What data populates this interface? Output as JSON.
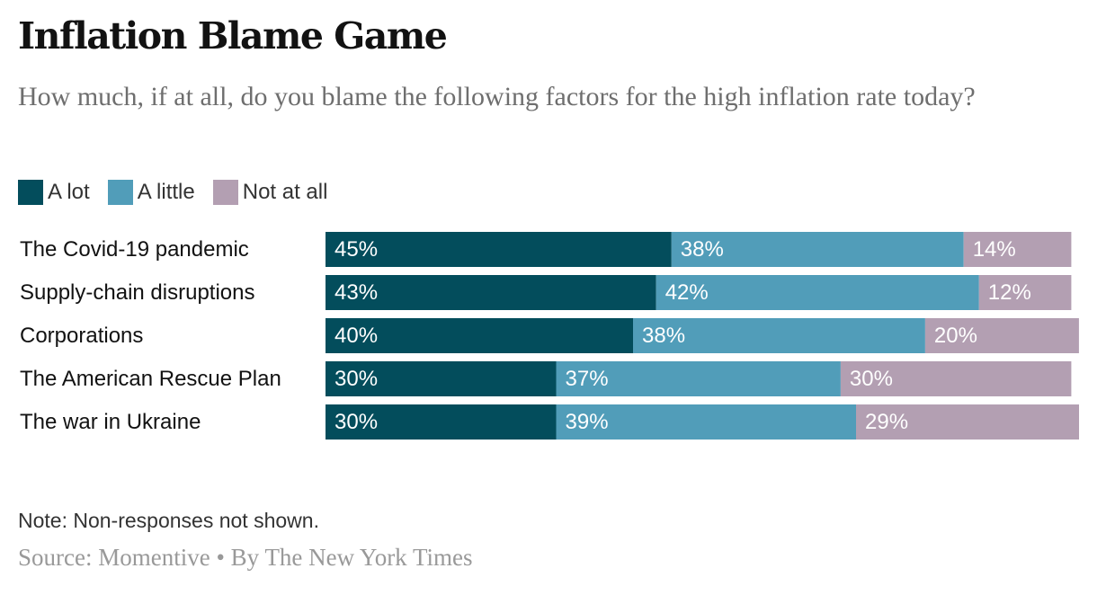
{
  "title": "Inflation Blame Game",
  "subtitle": "How much, if at all, do you blame the following factors for the high inflation rate today?",
  "legend": [
    {
      "label": "A lot",
      "color": "#034d5c"
    },
    {
      "label": "A little",
      "color": "#519db9"
    },
    {
      "label": "Not at all",
      "color": "#b39fb2"
    }
  ],
  "chart_data": {
    "type": "bar",
    "orientation": "horizontal",
    "stacked": true,
    "title": "Inflation Blame Game",
    "subtitle": "How much, if at all, do you blame the following factors for the high inflation rate today?",
    "categories": [
      "The Covid-19 pandemic",
      "Supply-chain disruptions",
      "Corporations",
      "The American Rescue Plan",
      "The war in Ukraine"
    ],
    "series": [
      {
        "name": "A lot",
        "color": "#034d5c",
        "values": [
          45,
          43,
          40,
          30,
          30
        ]
      },
      {
        "name": "A little",
        "color": "#519db9",
        "values": [
          38,
          42,
          38,
          37,
          39
        ]
      },
      {
        "name": "Not at all",
        "color": "#b39fb2",
        "values": [
          14,
          12,
          20,
          30,
          29
        ]
      }
    ],
    "value_suffix": "%",
    "xlim": [
      0,
      100
    ],
    "xlabel": "",
    "ylabel": "",
    "legend_position": "top-left",
    "grid": false
  },
  "note": "Note: Non-responses not shown.",
  "source": {
    "label": "Source:",
    "name": "Momentive",
    "separator": "•",
    "byline": "By The New York Times"
  }
}
